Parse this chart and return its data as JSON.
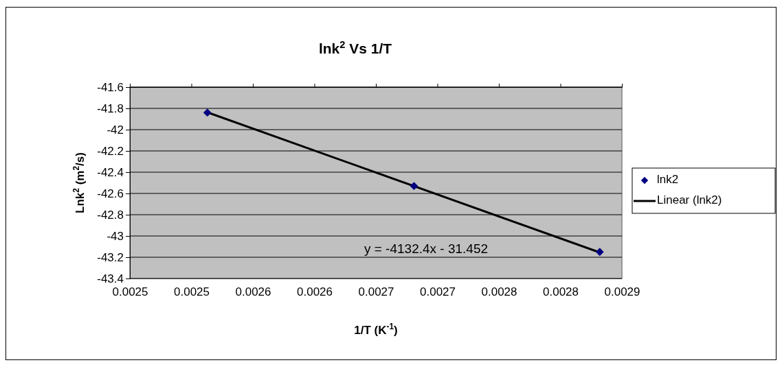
{
  "chart_data": {
    "type": "scatter",
    "title": "lnk$^{2}$ Vs 1/T",
    "xlabel": "1/T (K$^{-1}$)",
    "ylabel": "Lnk$^{2}$ (m$^{2}$/s)",
    "series": [
      {
        "name": "lnk2",
        "type": "scatter",
        "color": "#000080",
        "marker": "diamond",
        "x": [
          0.002513,
          0.002681,
          0.002832
        ],
        "values": [
          -41.84,
          -42.53,
          -43.15
        ]
      },
      {
        "name": "Linear (lnk2)",
        "type": "line",
        "color": "#000000",
        "marker": "none",
        "line_style": "solid",
        "x": [
          0.002513,
          0.002832
        ],
        "values": [
          -41.837,
          -43.155
        ]
      }
    ],
    "annotations": [
      "y = -4132.4x - 31.452"
    ],
    "xlim": [
      0.00245,
      0.00285
    ],
    "xticks": [
      {
        "value": 0.00245,
        "label": "0.0025"
      },
      {
        "value": 0.0025,
        "label": "0.0025"
      },
      {
        "value": 0.00255,
        "label": "0.0026"
      },
      {
        "value": 0.0026,
        "label": "0.0026"
      },
      {
        "value": 0.00265,
        "label": "0.0027"
      },
      {
        "value": 0.0027,
        "label": "0.0027"
      },
      {
        "value": 0.00275,
        "label": "0.0028"
      },
      {
        "value": 0.0028,
        "label": "0.0028"
      },
      {
        "value": 0.00285,
        "label": "0.0029"
      }
    ],
    "ylim": [
      -43.4,
      -41.6
    ],
    "yticks": [
      -43.4,
      -43.2,
      -43,
      -42.8,
      -42.6,
      -42.4,
      -42.2,
      -42,
      -41.8,
      -41.6
    ],
    "grid": "y",
    "legend": "right"
  }
}
